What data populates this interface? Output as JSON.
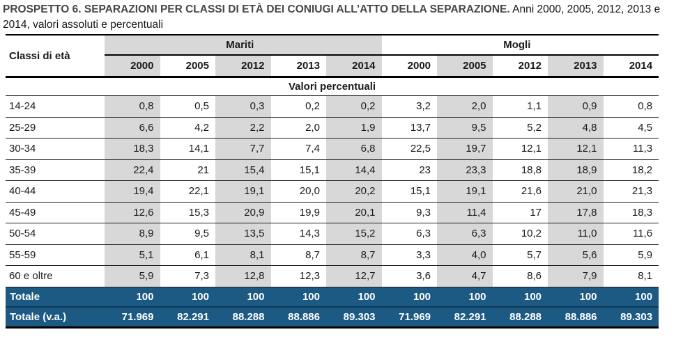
{
  "title": {
    "caps": "PROSPETTO 6. SEPARAZIONI PER CLASSI DI ETÀ DEI CONIUGI ALL’ATTO DELLA SEPARAZIONE.",
    "rest": " Anni 2000, 2005, 2012, 2013 e 2014, valori assoluti e percentuali"
  },
  "table": {
    "col_header_left": "Classi di età",
    "groups": [
      {
        "label": "Mariti"
      },
      {
        "label": "Mogli"
      }
    ],
    "years": [
      "2000",
      "2005",
      "2012",
      "2013",
      "2014"
    ],
    "section_label": "Valori percentuali",
    "rows": [
      {
        "label": "14-24",
        "mariti": [
          "0,8",
          "0,5",
          "0,3",
          "0,2",
          "0,2"
        ],
        "mogli": [
          "3,2",
          "2,0",
          "1,1",
          "0,9",
          "0,8"
        ]
      },
      {
        "label": "25-29",
        "mariti": [
          "6,6",
          "4,2",
          "2,2",
          "2,0",
          "1,9"
        ],
        "mogli": [
          "13,7",
          "9,5",
          "5,2",
          "4,8",
          "4,5"
        ]
      },
      {
        "label": "30-34",
        "mariti": [
          "18,3",
          "14,1",
          "7,7",
          "7,4",
          "6,8"
        ],
        "mogli": [
          "22,5",
          "19,7",
          "12,1",
          "12,1",
          "11,3"
        ]
      },
      {
        "label": "35-39",
        "mariti": [
          "22,4",
          "21",
          "15,4",
          "15,1",
          "14,4"
        ],
        "mogli": [
          "23",
          "23,3",
          "18,8",
          "18,9",
          "18,2"
        ]
      },
      {
        "label": "40-44",
        "mariti": [
          "19,4",
          "22,1",
          "19,1",
          "20,0",
          "20,2"
        ],
        "mogli": [
          "15,1",
          "19,1",
          "21,6",
          "21,0",
          "21,3"
        ]
      },
      {
        "label": "45-49",
        "mariti": [
          "12,6",
          "15,3",
          "20,9",
          "19,9",
          "20,1"
        ],
        "mogli": [
          "9,3",
          "11,4",
          "17",
          "17,8",
          "18,3"
        ]
      },
      {
        "label": "50-54",
        "mariti": [
          "8,9",
          "9,5",
          "13,5",
          "14,3",
          "15,2"
        ],
        "mogli": [
          "6,3",
          "6,3",
          "10,2",
          "11,0",
          "11,6"
        ]
      },
      {
        "label": "55-59",
        "mariti": [
          "5,1",
          "6,1",
          "8,1",
          "8,7",
          "8,7"
        ],
        "mogli": [
          "3,3",
          "4,0",
          "5,7",
          "5,6",
          "5,9"
        ]
      },
      {
        "label": "60 e oltre",
        "mariti": [
          "5,9",
          "7,3",
          "12,8",
          "12,3",
          "12,7"
        ],
        "mogli": [
          "3,6",
          "4,7",
          "8,6",
          "7,9",
          "8,1"
        ]
      }
    ],
    "totals": [
      {
        "label": "Totale",
        "mariti": [
          "100",
          "100",
          "100",
          "100",
          "100"
        ],
        "mogli": [
          "100",
          "100",
          "100",
          "100",
          "100"
        ]
      },
      {
        "label": "Totale (v.a.)",
        "mariti": [
          "71.969",
          "82.291",
          "88.288",
          "88.886",
          "89.303"
        ],
        "mogli": [
          "71.969",
          "82.291",
          "88.288",
          "88.886",
          "89.303"
        ]
      }
    ]
  },
  "colors": {
    "total_row_blue": "#1c5a83",
    "stripe_gray": "#d8d8d8"
  }
}
